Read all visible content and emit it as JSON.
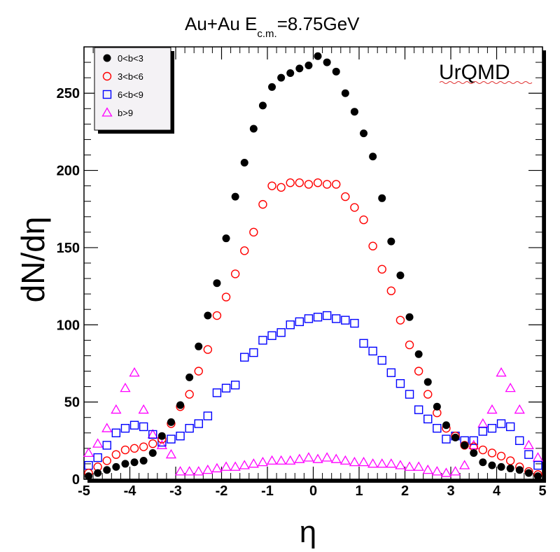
{
  "chart_data": {
    "type": "scatter",
    "title_main": "Au+Au E",
    "title_sub": "c.m.",
    "title_rest": "=8.75GeV",
    "annotation": "UrQMD",
    "xlabel": "η",
    "ylabel": "dN/dη",
    "xlim": [
      -5,
      5
    ],
    "ylim": [
      0,
      280
    ],
    "xticks": [
      -5,
      -4,
      -3,
      -2,
      -1,
      0,
      1,
      2,
      3,
      4,
      5
    ],
    "yticks": [
      0,
      50,
      100,
      150,
      200,
      250
    ],
    "legend_position": "top-left",
    "series": [
      {
        "name": "0<b<3",
        "marker": "filled-circle",
        "color": "#000000",
        "x": [
          -4.9,
          -4.7,
          -4.5,
          -4.3,
          -4.1,
          -3.9,
          -3.7,
          -3.5,
          -3.3,
          -3.1,
          -2.9,
          -2.7,
          -2.5,
          -2.3,
          -2.1,
          -1.9,
          -1.7,
          -1.5,
          -1.3,
          -1.1,
          -0.9,
          -0.7,
          -0.5,
          -0.3,
          -0.1,
          0.1,
          0.3,
          0.5,
          0.7,
          0.9,
          1.1,
          1.3,
          1.5,
          1.7,
          1.9,
          2.1,
          2.3,
          2.5,
          2.7,
          2.9,
          3.1,
          3.3,
          3.5,
          3.7,
          3.9,
          4.1,
          4.3,
          4.5,
          4.7,
          4.9
        ],
        "y": [
          2,
          4,
          6,
          8,
          10,
          11,
          12,
          17,
          28,
          37,
          48,
          66,
          86,
          106,
          127,
          156,
          183,
          205,
          227,
          242,
          254,
          260,
          263,
          266,
          268,
          274,
          270,
          264,
          250,
          238,
          224,
          209,
          182,
          154,
          132,
          105,
          81,
          63,
          47,
          35,
          27,
          22,
          17,
          11,
          9,
          8,
          7,
          6,
          4,
          2
        ]
      },
      {
        "name": "3<b<6",
        "marker": "open-circle",
        "color": "#ff0000",
        "x": [
          -4.9,
          -4.7,
          -4.5,
          -4.3,
          -4.1,
          -3.9,
          -3.7,
          -3.5,
          -3.3,
          -3.1,
          -2.9,
          -2.7,
          -2.5,
          -2.3,
          -2.1,
          -1.9,
          -1.7,
          -1.5,
          -1.3,
          -1.1,
          -0.9,
          -0.7,
          -0.5,
          -0.3,
          -0.1,
          0.1,
          0.3,
          0.5,
          0.7,
          0.9,
          1.1,
          1.3,
          1.5,
          1.7,
          1.9,
          2.1,
          2.3,
          2.5,
          2.7,
          2.9,
          3.1,
          3.3,
          3.5,
          3.7,
          3.9,
          4.1,
          4.3,
          4.5,
          4.7,
          4.9
        ],
        "y": [
          4,
          8,
          12,
          16,
          19,
          20,
          21,
          23,
          26,
          36,
          47,
          55,
          70,
          84,
          106,
          118,
          133,
          148,
          160,
          178,
          190,
          189,
          192,
          192,
          191,
          192,
          191,
          191,
          183,
          176,
          168,
          151,
          136,
          122,
          103,
          87,
          70,
          55,
          43,
          33,
          28,
          22,
          21,
          19,
          17,
          15,
          12,
          8,
          5,
          3
        ]
      },
      {
        "name": "6<b<9",
        "marker": "open-square",
        "color": "#0000ff",
        "x": [
          -4.9,
          -4.7,
          -4.5,
          -4.3,
          -4.1,
          -3.9,
          -3.7,
          -3.5,
          -3.3,
          -3.1,
          -2.9,
          -2.7,
          -2.5,
          -2.3,
          -2.1,
          -1.9,
          -1.7,
          -1.5,
          -1.3,
          -1.1,
          -0.9,
          -0.7,
          -0.5,
          -0.3,
          -0.1,
          0.1,
          0.3,
          0.5,
          0.7,
          0.9,
          1.1,
          1.3,
          1.5,
          1.7,
          1.9,
          2.1,
          2.3,
          2.5,
          2.7,
          2.9,
          3.1,
          3.3,
          3.5,
          3.7,
          3.9,
          4.1,
          4.3,
          4.5,
          4.7,
          4.9
        ],
        "y": [
          9,
          14,
          22,
          30,
          33,
          35,
          34,
          29,
          24,
          26,
          28,
          33,
          36,
          41,
          56,
          59,
          61,
          79,
          82,
          90,
          93,
          95,
          100,
          102,
          104,
          105,
          106,
          104,
          103,
          101,
          88,
          83,
          77,
          69,
          62,
          55,
          45,
          39,
          33,
          26,
          28,
          25,
          25,
          31,
          33,
          36,
          34,
          25,
          16,
          9
        ]
      },
      {
        "name": "b>9",
        "marker": "open-triangle",
        "color": "#ff00ff",
        "x": [
          -4.9,
          -4.7,
          -4.5,
          -4.3,
          -4.1,
          -3.9,
          -3.7,
          -3.5,
          -3.3,
          -3.1,
          -2.9,
          -2.7,
          -2.5,
          -2.3,
          -2.1,
          -1.9,
          -1.7,
          -1.5,
          -1.3,
          -1.1,
          -0.9,
          -0.7,
          -0.5,
          -0.3,
          -0.1,
          0.1,
          0.3,
          0.5,
          0.7,
          0.9,
          1.1,
          1.3,
          1.5,
          1.7,
          1.9,
          2.1,
          2.3,
          2.5,
          2.7,
          2.9,
          3.1,
          3.3,
          3.5,
          3.7,
          3.9,
          4.1,
          4.3,
          4.5,
          4.7,
          4.9
        ],
        "y": [
          17,
          23,
          33,
          45,
          59,
          69,
          45,
          29,
          22,
          16,
          5,
          5,
          5,
          6,
          7,
          8,
          8,
          9,
          10,
          11,
          12,
          12,
          12,
          13,
          14,
          13,
          14,
          13,
          12,
          11,
          11,
          10,
          10,
          10,
          9,
          8,
          8,
          6,
          5,
          4,
          5,
          9,
          22,
          36,
          45,
          69,
          59,
          45,
          22,
          14
        ]
      }
    ]
  }
}
